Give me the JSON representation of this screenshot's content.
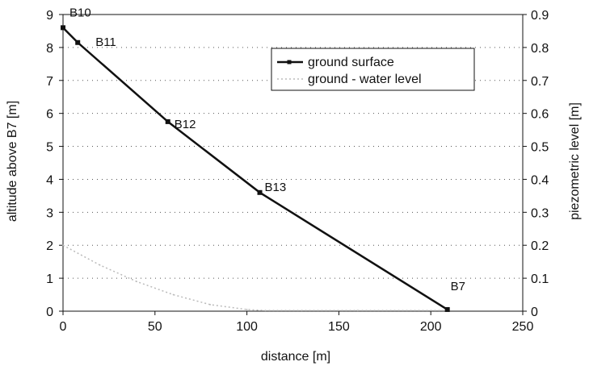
{
  "chart_data": {
    "type": "line",
    "xlabel": "distance [m]",
    "ylabel": "altitude above B7 [m]",
    "y2label": "piezometric level [m]",
    "xlim": [
      0,
      250
    ],
    "ylim": [
      0,
      9
    ],
    "y2lim": [
      0,
      0.9
    ],
    "xticks": [
      "0",
      "50",
      "100",
      "150",
      "200",
      "250"
    ],
    "yticks": [
      "0",
      "1",
      "2",
      "3",
      "4",
      "5",
      "6",
      "7",
      "8",
      "9"
    ],
    "y2ticks": [
      "0",
      "0.1",
      "0.2",
      "0.3",
      "0.4",
      "0.5",
      "0.6",
      "0.7",
      "0.8",
      "0.9"
    ],
    "grid": "horizontal dotted",
    "legend_position": "top-right",
    "series": [
      {
        "name": "ground surface",
        "axis": "left",
        "color": "#111111",
        "x": [
          0,
          8,
          57,
          107,
          209
        ],
        "y": [
          8.6,
          8.15,
          5.75,
          3.6,
          0.05
        ]
      },
      {
        "name": "ground - water level",
        "axis": "left",
        "color": "#bbbbbb",
        "x": [
          0,
          20,
          40,
          60,
          80,
          100,
          110,
          130,
          160,
          209
        ],
        "y": [
          2.0,
          1.4,
          0.9,
          0.5,
          0.2,
          0.05,
          0.02,
          0.02,
          0.02,
          0.02
        ]
      }
    ],
    "point_labels": [
      {
        "text": "B10",
        "x": 0,
        "y": 8.6
      },
      {
        "text": "B11",
        "x": 8,
        "y": 8.15
      },
      {
        "text": "B12",
        "x": 57,
        "y": 5.75
      },
      {
        "text": "B13",
        "x": 107,
        "y": 3.6
      },
      {
        "text": "B7",
        "x": 209,
        "y": 0.05
      }
    ]
  }
}
